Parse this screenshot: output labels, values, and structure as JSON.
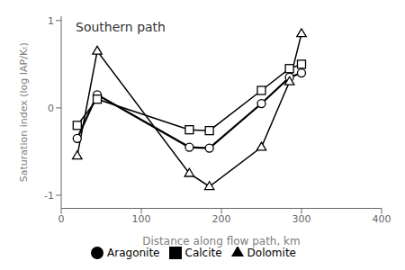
{
  "chart_data": {
    "type": "line",
    "title": "Southern path",
    "xlabel": "Distance along flow path, km",
    "ylabel": "Saturation index (log IAP/Kₜ)",
    "x": [
      20,
      45,
      160,
      185,
      250,
      285,
      300
    ],
    "xlim": [
      0,
      400
    ],
    "xticks": [
      0,
      100,
      200,
      300,
      400
    ],
    "ylim": [
      -1.15,
      1.05
    ],
    "yticks": [
      -1,
      0,
      1
    ],
    "grid": false,
    "legend": "bottom",
    "series": [
      {
        "name": "Aragonite",
        "color": "black",
        "marker": "circle",
        "values": [
          -0.35,
          0.15,
          -0.45,
          -0.46,
          0.05,
          0.35,
          0.4
        ]
      },
      {
        "name": "Calcite",
        "color": "black",
        "marker": "square",
        "values": [
          -0.2,
          0.1,
          -0.25,
          -0.26,
          0.2,
          0.45,
          0.5
        ]
      },
      {
        "name": "Dolomite",
        "color": "black",
        "marker": "triangle",
        "values": [
          -0.55,
          0.65,
          -0.75,
          -0.9,
          -0.45,
          0.3,
          0.85
        ]
      }
    ]
  }
}
